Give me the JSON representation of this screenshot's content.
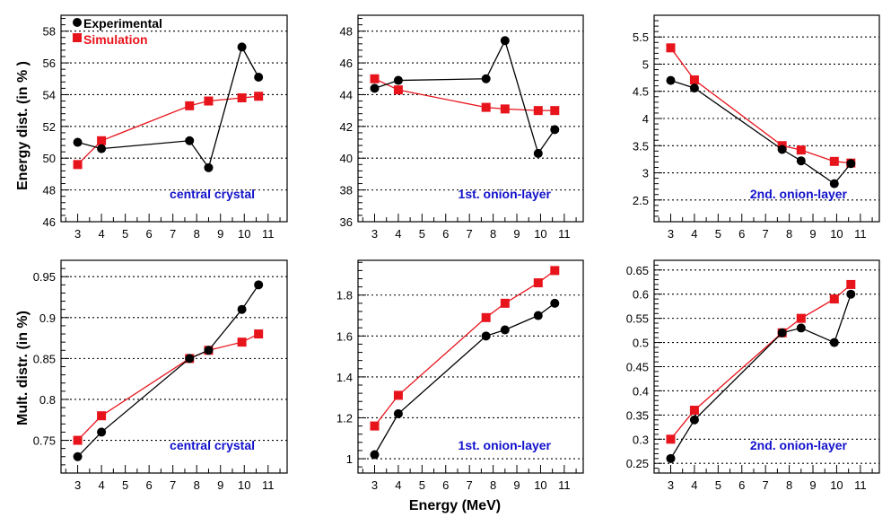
{
  "figure": {
    "xlabel": "Energy (MeV)",
    "row_ylabels": [
      "Energy dist. (in % )",
      "Mult. distr. (in %)"
    ],
    "legend": {
      "experimental": "Experimental",
      "simulation": "Simulation"
    },
    "colors": {
      "experimental": "#000000",
      "simulation": "#e8141c",
      "panel_label": "#1111cc",
      "grid": "#000000"
    }
  },
  "chart_data": [
    {
      "type": "line",
      "panel_label": "central crystal",
      "xlim": [
        2.3,
        11.8
      ],
      "ylim": [
        46,
        59
      ],
      "xticks": [
        3,
        4,
        5,
        6,
        7,
        8,
        9,
        10,
        11
      ],
      "yticks": [
        46,
        48,
        50,
        52,
        54,
        56,
        58
      ],
      "ytick_labels": [
        "46",
        "48",
        "50",
        "52",
        "54",
        "56",
        "58"
      ],
      "grid": true,
      "legend_position": "top-left",
      "series": [
        {
          "name": "Experimental",
          "x": [
            3,
            4,
            7.7,
            8.5,
            9.9,
            10.6
          ],
          "y": [
            51.0,
            50.6,
            51.1,
            49.4,
            57.0,
            55.1
          ]
        },
        {
          "name": "Simulation",
          "x": [
            3,
            4,
            7.7,
            8.5,
            9.9,
            10.6
          ],
          "y": [
            49.6,
            51.1,
            53.3,
            53.6,
            53.8,
            53.9
          ]
        }
      ]
    },
    {
      "type": "line",
      "panel_label": "1st. onion-layer",
      "xlim": [
        2.3,
        11.8
      ],
      "ylim": [
        36,
        49
      ],
      "xticks": [
        3,
        4,
        5,
        6,
        7,
        8,
        9,
        10,
        11
      ],
      "yticks": [
        36,
        38,
        40,
        42,
        44,
        46,
        48
      ],
      "ytick_labels": [
        "36",
        "38",
        "40",
        "42",
        "44",
        "46",
        "48"
      ],
      "grid": true,
      "series": [
        {
          "name": "Experimental",
          "x": [
            3,
            4,
            7.7,
            8.5,
            9.9,
            10.6
          ],
          "y": [
            44.4,
            44.9,
            45.0,
            47.4,
            40.3,
            41.8
          ]
        },
        {
          "name": "Simulation",
          "x": [
            3,
            4,
            7.7,
            8.5,
            9.9,
            10.6
          ],
          "y": [
            45.0,
            44.3,
            43.2,
            43.1,
            43.0,
            43.0
          ]
        }
      ]
    },
    {
      "type": "line",
      "panel_label": "2nd. onion-layer",
      "xlim": [
        2.3,
        11.8
      ],
      "ylim": [
        2.1,
        5.9
      ],
      "xticks": [
        3,
        4,
        5,
        6,
        7,
        8,
        9,
        10,
        11
      ],
      "yticks": [
        2.5,
        3,
        3.5,
        4,
        4.5,
        5,
        5.5
      ],
      "ytick_labels": [
        "2.5",
        "3",
        "3.5",
        "4",
        "4.5",
        "5",
        "5.5"
      ],
      "grid": true,
      "series": [
        {
          "name": "Experimental",
          "x": [
            3,
            4,
            7.7,
            8.5,
            9.9,
            10.6
          ],
          "y": [
            4.7,
            4.56,
            3.43,
            3.22,
            2.8,
            3.17
          ]
        },
        {
          "name": "Simulation",
          "x": [
            3,
            4,
            7.7,
            8.5,
            9.9,
            10.6
          ],
          "y": [
            5.3,
            4.71,
            3.5,
            3.42,
            3.21,
            3.18
          ]
        }
      ]
    },
    {
      "type": "line",
      "panel_label": "central crystal",
      "xlim": [
        2.3,
        11.8
      ],
      "ylim": [
        0.71,
        0.97
      ],
      "xticks": [
        3,
        4,
        5,
        6,
        7,
        8,
        9,
        10,
        11
      ],
      "yticks": [
        0.75,
        0.8,
        0.85,
        0.9,
        0.95
      ],
      "ytick_labels": [
        "0.75",
        "0.8",
        "0.85",
        "0.9",
        "0.95"
      ],
      "grid": true,
      "series": [
        {
          "name": "Experimental",
          "x": [
            3,
            4,
            7.7,
            8.5,
            9.9,
            10.6
          ],
          "y": [
            0.73,
            0.76,
            0.85,
            0.86,
            0.91,
            0.94
          ]
        },
        {
          "name": "Simulation",
          "x": [
            3,
            4,
            7.7,
            8.5,
            9.9,
            10.6
          ],
          "y": [
            0.75,
            0.78,
            0.85,
            0.86,
            0.87,
            0.88
          ]
        }
      ]
    },
    {
      "type": "line",
      "panel_label": "1st. onion-layer",
      "xlim": [
        2.3,
        11.8
      ],
      "ylim": [
        0.93,
        1.97
      ],
      "xticks": [
        3,
        4,
        5,
        6,
        7,
        8,
        9,
        10,
        11
      ],
      "yticks": [
        1,
        1.2,
        1.4,
        1.6,
        1.8
      ],
      "ytick_labels": [
        "1",
        "1.2",
        "1.4",
        "1.6",
        "1.8"
      ],
      "grid": true,
      "series": [
        {
          "name": "Experimental",
          "x": [
            3,
            4,
            7.7,
            8.5,
            9.9,
            10.6
          ],
          "y": [
            1.02,
            1.22,
            1.6,
            1.63,
            1.7,
            1.76
          ]
        },
        {
          "name": "Simulation",
          "x": [
            3,
            4,
            7.7,
            8.5,
            9.9,
            10.6
          ],
          "y": [
            1.16,
            1.31,
            1.69,
            1.76,
            1.86,
            1.92
          ]
        }
      ]
    },
    {
      "type": "line",
      "panel_label": "2nd. onion-layer",
      "xlim": [
        2.3,
        11.8
      ],
      "ylim": [
        0.23,
        0.67
      ],
      "xticks": [
        3,
        4,
        5,
        6,
        7,
        8,
        9,
        10,
        11
      ],
      "yticks": [
        0.25,
        0.3,
        0.35,
        0.4,
        0.45,
        0.5,
        0.55,
        0.6,
        0.65
      ],
      "ytick_labels": [
        "0.25",
        "0.3",
        "0.35",
        "0.4",
        "0.45",
        "0.5",
        "0.55",
        "0.6",
        "0.65"
      ],
      "grid": true,
      "series": [
        {
          "name": "Experimental",
          "x": [
            3,
            4,
            7.7,
            8.5,
            9.9,
            10.6
          ],
          "y": [
            0.26,
            0.34,
            0.52,
            0.53,
            0.5,
            0.6
          ]
        },
        {
          "name": "Simulation",
          "x": [
            3,
            4,
            7.7,
            8.5,
            9.9,
            10.6
          ],
          "y": [
            0.3,
            0.36,
            0.52,
            0.55,
            0.59,
            0.62
          ]
        }
      ]
    }
  ]
}
